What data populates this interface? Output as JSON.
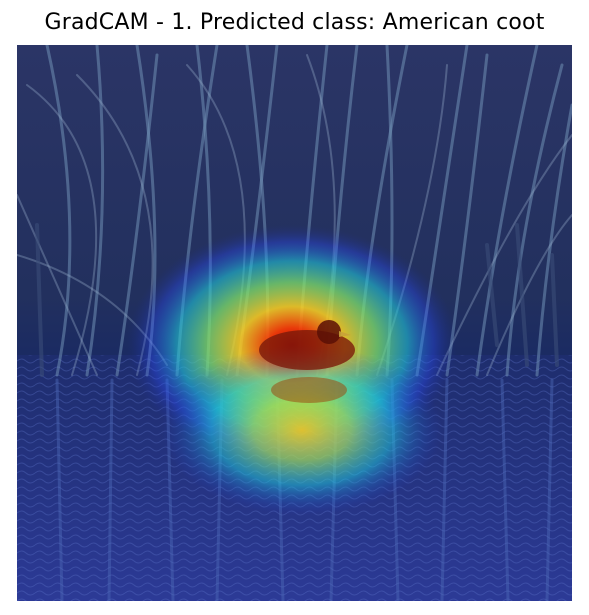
{
  "figure": {
    "title": "GradCAM - 1. Predicted class: American coot"
  },
  "image": {
    "subject": "waterbird among reeds reflected in water",
    "overlay": "gradcam-heatmap",
    "colormap": "jet",
    "colors": {
      "low": "#2a2f8c",
      "mid": "#2fd4c0",
      "high": "#ffe23a",
      "peak": "#d10000"
    }
  }
}
